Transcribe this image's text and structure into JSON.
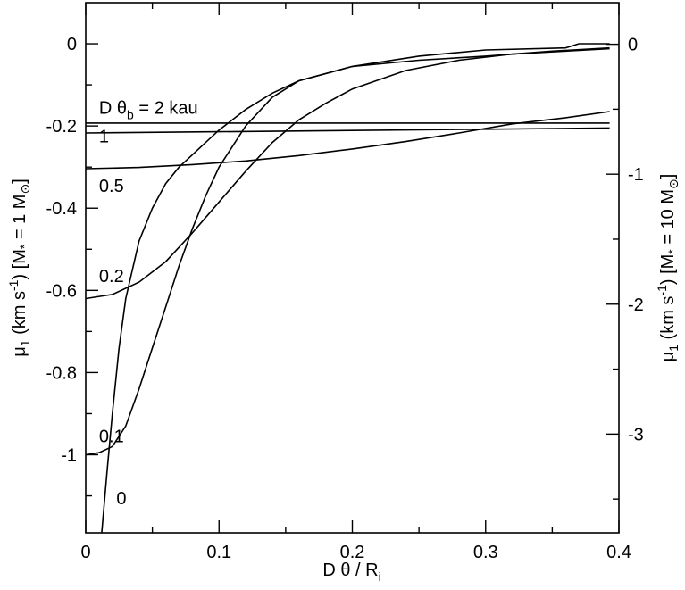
{
  "chart_data": {
    "type": "line",
    "xlabel": {
      "main": "D θ / R",
      "sub": "i"
    },
    "ylabel_left": {
      "mu": "μ",
      "mu_sub": "1",
      "open": " (km s",
      "exp": "-1",
      "mid": ") [M",
      "star": "*",
      "eq": " = 1 M",
      "sun": "⊙",
      "close": "]"
    },
    "ylabel_right": {
      "mu": "μ",
      "mu_sub": "1",
      "open": " (km s",
      "exp": "-1",
      "mid": ") [M",
      "star": "*",
      "eq": " = 10 M",
      "sun": "⊙",
      "close": "]"
    },
    "xlim": [
      0,
      0.4
    ],
    "ylim_left": [
      -1.19,
      0.1
    ],
    "ylim_right": [
      -3.76,
      0.32
    ],
    "grid": false,
    "x_ticks": [
      "0",
      "0.1",
      "0.2",
      "0.3",
      "0.4"
    ],
    "x_tick_values": [
      0,
      0.1,
      0.2,
      0.3,
      0.4
    ],
    "y_left_ticks": [
      "0",
      "-0.2",
      "-0.4",
      "-0.6",
      "-0.8",
      "-1"
    ],
    "y_left_tick_values": [
      0,
      -0.2,
      -0.4,
      -0.6,
      -0.8,
      -1.0
    ],
    "y_right_ticks": [
      "0",
      "-1",
      "-2",
      "-3"
    ],
    "y_right_tick_values": [
      0,
      -1,
      -2,
      -3
    ],
    "curve_labels": [
      {
        "text_parts": [
          "D θ",
          "b",
          " = 2 kau"
        ],
        "x": 0.01,
        "y": -0.17
      },
      {
        "text_parts": [
          "1"
        ],
        "x": 0.01,
        "y": -0.24
      },
      {
        "text_parts": [
          "0.5"
        ],
        "x": 0.01,
        "y": -0.36
      },
      {
        "text_parts": [
          "0.2"
        ],
        "x": 0.01,
        "y": -0.58
      },
      {
        "text_parts": [
          "0.1"
        ],
        "x": 0.01,
        "y": -0.97
      },
      {
        "text_parts": [
          "0"
        ],
        "x": 0.023,
        "y": -1.12
      }
    ],
    "series": [
      {
        "label": "D θ_b = 2 kau",
        "x": [
          0,
          0.1,
          0.2,
          0.3,
          0.393
        ],
        "y": [
          -0.193,
          -0.193,
          -0.193,
          -0.193,
          -0.193
        ]
      },
      {
        "label": "1",
        "x": [
          0,
          0.1,
          0.2,
          0.3,
          0.393
        ],
        "y": [
          -0.217,
          -0.214,
          -0.211,
          -0.208,
          -0.205
        ]
      },
      {
        "label": "0.5",
        "x": [
          0,
          0.04,
          0.08,
          0.12,
          0.16,
          0.2,
          0.24,
          0.28,
          0.32,
          0.36,
          0.393
        ],
        "y": [
          -0.304,
          -0.301,
          -0.294,
          -0.285,
          -0.272,
          -0.256,
          -0.238,
          -0.217,
          -0.195,
          -0.18,
          -0.165
        ]
      },
      {
        "label": "0.2",
        "x": [
          0,
          0.02,
          0.04,
          0.06,
          0.08,
          0.1,
          0.12,
          0.14,
          0.16,
          0.18,
          0.2,
          0.24,
          0.28,
          0.32,
          0.36,
          0.393
        ],
        "y": [
          -0.62,
          -0.61,
          -0.58,
          -0.53,
          -0.46,
          -0.385,
          -0.31,
          -0.24,
          -0.185,
          -0.145,
          -0.11,
          -0.065,
          -0.04,
          -0.025,
          -0.018,
          -0.012
        ]
      },
      {
        "label": "0.1",
        "x": [
          0,
          0.01,
          0.02,
          0.03,
          0.04,
          0.05,
          0.06,
          0.07,
          0.08,
          0.09,
          0.1,
          0.12,
          0.14,
          0.16,
          0.2,
          0.25,
          0.3,
          0.35,
          0.393
        ],
        "y": [
          -1.0,
          -0.995,
          -0.98,
          -0.93,
          -0.84,
          -0.74,
          -0.64,
          -0.54,
          -0.45,
          -0.37,
          -0.3,
          -0.2,
          -0.13,
          -0.09,
          -0.055,
          -0.04,
          -0.03,
          -0.018,
          -0.01
        ]
      },
      {
        "label": "0",
        "x": [
          0.012,
          0.016,
          0.02,
          0.025,
          0.03,
          0.04,
          0.05,
          0.06,
          0.07,
          0.08,
          0.09,
          0.1,
          0.12,
          0.14,
          0.16,
          0.2,
          0.25,
          0.3,
          0.36,
          0.37,
          0.393
        ],
        "y": [
          -1.19,
          -1.04,
          -0.9,
          -0.74,
          -0.62,
          -0.48,
          -0.4,
          -0.34,
          -0.3,
          -0.27,
          -0.24,
          -0.21,
          -0.16,
          -0.12,
          -0.09,
          -0.055,
          -0.03,
          -0.015,
          -0.01,
          0.0,
          0.0
        ]
      }
    ]
  }
}
